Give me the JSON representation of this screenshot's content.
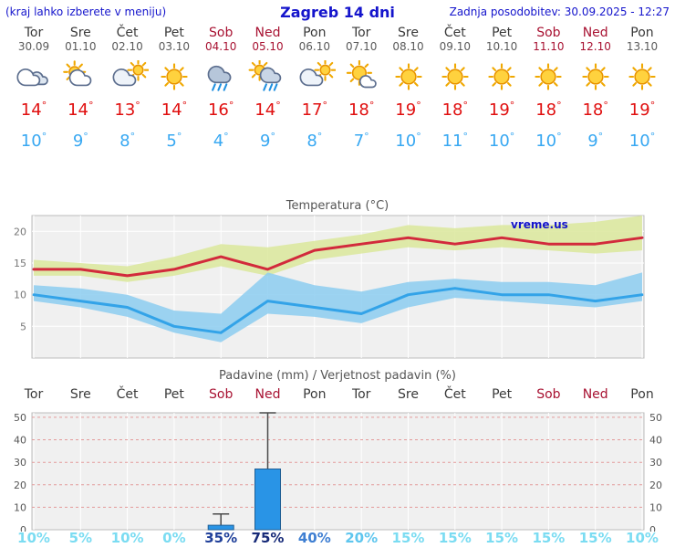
{
  "header": {
    "hint": "(kraj lahko izberete v meniju)",
    "title": "Zagreb 14 dni",
    "last_update": "Zadnja posodobitev: 30.09.2025 - 12:27"
  },
  "units": {
    "degree": "°"
  },
  "colors": {
    "accent": "#1414cc",
    "tmax": "#e01010",
    "tmin": "#38a8f2",
    "weekend_red": "#a81232"
  },
  "days": [
    {
      "name": "Tor",
      "date": "30.09",
      "red": false,
      "icon": "cloudy",
      "tmax": 14,
      "tmin": 10
    },
    {
      "name": "Sre",
      "date": "01.10",
      "red": false,
      "icon": "partly-cloudy",
      "tmax": 14,
      "tmin": 9
    },
    {
      "name": "Čet",
      "date": "02.10",
      "red": false,
      "icon": "mostly-cloudy",
      "tmax": 13,
      "tmin": 8
    },
    {
      "name": "Pet",
      "date": "03.10",
      "red": false,
      "icon": "sunny",
      "tmax": 14,
      "tmin": 5
    },
    {
      "name": "Sob",
      "date": "04.10",
      "red": true,
      "icon": "rain",
      "tmax": 16,
      "tmin": 4
    },
    {
      "name": "Ned",
      "date": "05.10",
      "red": true,
      "icon": "rain-sun",
      "tmax": 14,
      "tmin": 9
    },
    {
      "name": "Pon",
      "date": "06.10",
      "red": false,
      "icon": "mostly-cloudy",
      "tmax": 17,
      "tmin": 8
    },
    {
      "name": "Tor",
      "date": "07.10",
      "red": false,
      "icon": "mostly-sunny",
      "tmax": 18,
      "tmin": 7
    },
    {
      "name": "Sre",
      "date": "08.10",
      "red": false,
      "icon": "sunny",
      "tmax": 19,
      "tmin": 10
    },
    {
      "name": "Čet",
      "date": "09.10",
      "red": false,
      "icon": "sunny",
      "tmax": 18,
      "tmin": 11
    },
    {
      "name": "Pet",
      "date": "10.10",
      "red": false,
      "icon": "sunny",
      "tmax": 19,
      "tmin": 10
    },
    {
      "name": "Sob",
      "date": "11.10",
      "red": true,
      "icon": "sunny",
      "tmax": 18,
      "tmin": 10
    },
    {
      "name": "Ned",
      "date": "12.10",
      "red": true,
      "icon": "sunny",
      "tmax": 18,
      "tmin": 9
    },
    {
      "name": "Pon",
      "date": "13.10",
      "red": false,
      "icon": "sunny",
      "tmax": 19,
      "tmin": 10
    }
  ],
  "chart_data": [
    {
      "type": "line",
      "title": "Temperatura (°C)",
      "categories": [
        "Tor 30.09",
        "Sre 01.10",
        "Čet 02.10",
        "Pet 03.10",
        "Sob 04.10",
        "Ned 05.10",
        "Pon 06.10",
        "Tor 07.10",
        "Sre 08.10",
        "Čet 09.10",
        "Pet 10.10",
        "Sob 11.10",
        "Ned 12.10",
        "Pon 13.10"
      ],
      "series": [
        {
          "name": "max temperature",
          "color": "#d22a3c",
          "values": [
            14,
            14,
            13,
            14,
            16,
            14,
            17,
            18,
            19,
            18,
            19,
            18,
            18,
            19
          ]
        },
        {
          "name": "min temperature",
          "color": "#33a3e8",
          "values": [
            10,
            9,
            8,
            5,
            4,
            9,
            8,
            7,
            10,
            11,
            10,
            10,
            9,
            10
          ]
        }
      ],
      "bands": [
        {
          "name": "max range",
          "color": "#dbe79b",
          "upper": [
            15.5,
            15,
            14.5,
            16,
            18,
            17.5,
            18.5,
            19.5,
            21,
            20.5,
            21,
            21,
            21.5,
            22.5
          ],
          "lower": [
            13,
            13,
            12,
            13,
            14.5,
            13,
            15.5,
            16.5,
            17.5,
            17,
            17.5,
            17,
            16.5,
            17
          ]
        },
        {
          "name": "min range",
          "color": "#8ccdf0",
          "upper": [
            11.5,
            11,
            10,
            7.5,
            7,
            13.5,
            11.5,
            10.5,
            12,
            12.5,
            12,
            12,
            11.5,
            13.5
          ],
          "lower": [
            9,
            8,
            6.5,
            4,
            2.5,
            7,
            6.5,
            5.5,
            8,
            9.5,
            9,
            8.5,
            8,
            9
          ]
        }
      ],
      "ylim": [
        0,
        22.5
      ],
      "yticks": [
        5,
        10,
        15,
        20
      ],
      "grid": true,
      "watermark": "vreme.us"
    },
    {
      "type": "bar",
      "title": "Padavine (mm) / Verjetnost padavin (%)",
      "categories": [
        "Tor",
        "Sre",
        "Čet",
        "Pet",
        "Sob",
        "Ned",
        "Pon",
        "Tor",
        "Sre",
        "Čet",
        "Pet",
        "Sob",
        "Ned",
        "Pon"
      ],
      "values": [
        0,
        0,
        0,
        0,
        2,
        27,
        0,
        0,
        0,
        0,
        0,
        0,
        0,
        0
      ],
      "whisker_low": [
        0,
        0,
        0,
        0,
        1,
        9,
        0,
        0,
        0,
        0,
        0,
        0,
        0,
        0
      ],
      "whisker_high": [
        0,
        0,
        0,
        0,
        7,
        52,
        0,
        0,
        0,
        0,
        0,
        0,
        0,
        0
      ],
      "probabilities": [
        "10%",
        "5%",
        "10%",
        "0%",
        "35%",
        "75%",
        "40%",
        "20%",
        "15%",
        "15%",
        "15%",
        "15%",
        "15%",
        "10%"
      ],
      "prob_colors": [
        "#7bdcf2",
        "#7bdcf2",
        "#7bdcf2",
        "#7bdcf2",
        "#20409a",
        "#162a78",
        "#3f7fd2",
        "#5fc6ee",
        "#7bdcf2",
        "#7bdcf2",
        "#7bdcf2",
        "#7bdcf2",
        "#7bdcf2",
        "#7bdcf2"
      ],
      "bar_color": "#2994e6",
      "ylim": [
        0,
        52
      ],
      "yticks": [
        0,
        10,
        20,
        30,
        40,
        50
      ],
      "grid": true
    }
  ]
}
